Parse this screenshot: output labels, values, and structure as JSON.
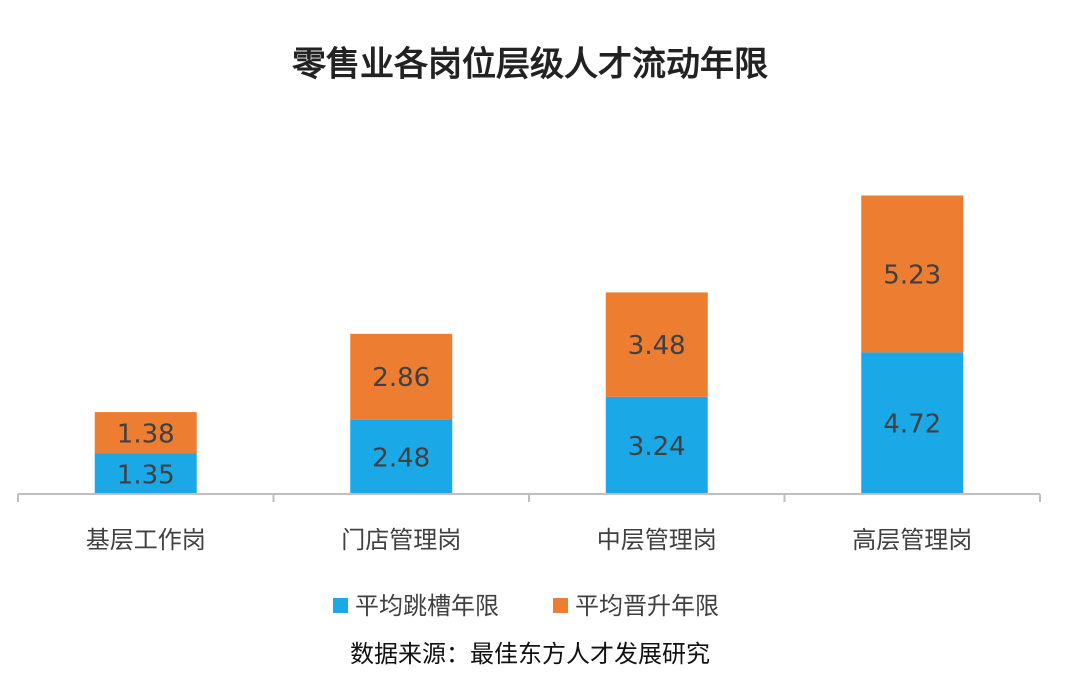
{
  "chart_data": {
    "type": "stacked_bar",
    "title": "零售业各岗位层级人才流动年限",
    "categories": [
      "基层工作岗",
      "门店管理岗",
      "中层管理岗",
      "高层管理岗"
    ],
    "series": [
      {
        "name": "平均跳槽年限",
        "color": "#1ba8e6",
        "values": [
          1.35,
          2.48,
          3.24,
          4.72
        ]
      },
      {
        "name": "平均晋升年限",
        "color": "#ec7d31",
        "values": [
          1.38,
          2.86,
          3.48,
          5.23
        ]
      }
    ],
    "ylim": [
      0,
      10
    ],
    "source": "数据来源：最佳东方人才发展研究"
  }
}
